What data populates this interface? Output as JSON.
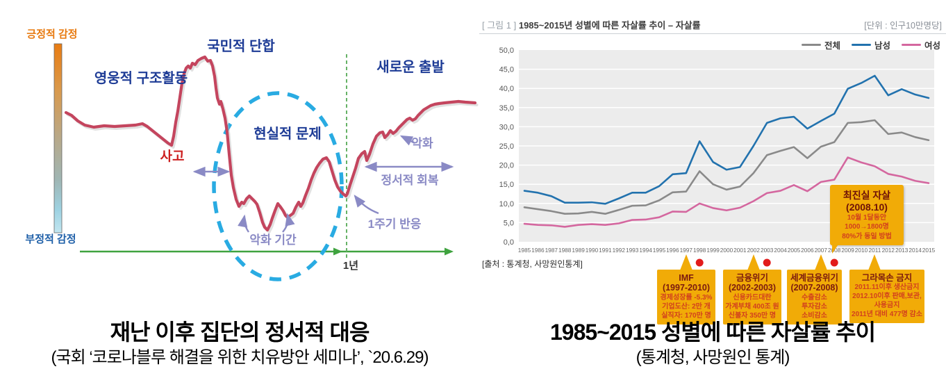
{
  "left_figure": {
    "axis": {
      "positive_emotion": "긍정적 감정",
      "negative_emotion": "부정적 감정",
      "one_year": "1년"
    },
    "annotations": {
      "heroic_rescue": "영웅적 구조활동",
      "national_unity": "국민적 단합",
      "new_start": "새로운 출발",
      "realistic_problems": "현실적 문제",
      "accident": "사고",
      "worsening": "악화",
      "emotional_recovery": "정서적 회복",
      "worsening_period": "악화 기간",
      "one_cycle_response": "1주기 반응"
    },
    "colors": {
      "curve": "#c4455e",
      "ellipse": "#29abe2",
      "axis_green": "#3fa33f",
      "annotation_purple": "#8a8ac5"
    },
    "caption_title": "재난 이후 집단의 정서적 대응",
    "caption_source": "(국회 ‘코로나블루 해결을 위한 치유방안 세미나’, `20.6.29)"
  },
  "right_figure": {
    "header": {
      "figure_tag": "[ 그림 1 ]",
      "title": "1985~2015년 성별에 따른 자살률 추이 – 자살률",
      "unit": "[단위 : 인구10만명당]"
    },
    "source": "[출처 : 통계청, 사망원인통계]",
    "callouts": [
      {
        "title": "IMF",
        "subtitle": "(1997-2010)",
        "lines": [
          "경제성장률 -5.3%",
          "기업도산: 2만 개",
          "실직자: 170만 명"
        ],
        "target_year": 1997
      },
      {
        "title": "금융위기",
        "subtitle": "(2002-2003)",
        "lines": [
          "신용카드대란",
          "가계부채 400조 원",
          "신불자 350만 명"
        ],
        "target_year": 2002
      },
      {
        "title": "세계금융위기",
        "subtitle": "(2007-2008)",
        "lines": [
          "수출감소",
          "투자감소",
          "소비감소"
        ],
        "target_year": 2007
      },
      {
        "title": "그라목손 금지",
        "subtitle": "",
        "lines": [
          "2011.11이후 생산금지",
          "2012.10이후 판매,보관,사용금지",
          "2011년 대비 477명 감소"
        ],
        "target_year": 2011
      }
    ],
    "event_callout": {
      "title": "최진실 자살",
      "subtitle": "(2008.10)",
      "lines": [
        "10월 1달동안",
        "1000→1800명",
        "80%가 동일 방법"
      ],
      "target_year": 2008
    },
    "caption_title": "1985~2015 성별에 따른 자살률 추이",
    "caption_source": "(통계청, 사망원인 통계)"
  },
  "chart_data": {
    "type": "line",
    "title": "1985~2015년 성별에 따른 자살률 추이 – 자살률",
    "unit": "인구10만명당",
    "categories": [
      1985,
      1986,
      1987,
      1988,
      1989,
      1990,
      1991,
      1992,
      1993,
      1994,
      1995,
      1996,
      1997,
      1998,
      1999,
      2000,
      2001,
      2002,
      2003,
      2004,
      2005,
      2006,
      2007,
      2008,
      2009,
      2010,
      2011,
      2012,
      2013,
      2014,
      2015
    ],
    "series": [
      {
        "name": "전체",
        "color": "#8a8a8a",
        "values": [
          9.0,
          8.5,
          8.0,
          7.3,
          7.4,
          7.8,
          7.3,
          8.3,
          9.4,
          9.5,
          10.8,
          12.9,
          13.1,
          18.4,
          15.0,
          13.6,
          14.4,
          17.9,
          22.6,
          23.7,
          24.7,
          21.8,
          24.8,
          26.0,
          31.0,
          31.2,
          31.7,
          28.1,
          28.5,
          27.3,
          26.5
        ]
      },
      {
        "name": "남성",
        "color": "#2272ae",
        "values": [
          13.3,
          12.8,
          11.9,
          10.2,
          10.2,
          10.3,
          9.9,
          11.3,
          12.8,
          12.8,
          14.5,
          17.6,
          17.9,
          26.2,
          20.8,
          18.8,
          19.5,
          25.0,
          31.0,
          32.2,
          32.6,
          29.5,
          31.5,
          33.4,
          39.9,
          41.4,
          43.3,
          38.2,
          39.8,
          38.4,
          37.5
        ]
      },
      {
        "name": "여성",
        "color": "#d4679f",
        "values": [
          4.7,
          4.4,
          4.3,
          3.9,
          4.4,
          4.6,
          4.4,
          4.8,
          5.7,
          5.8,
          6.4,
          7.9,
          7.8,
          10.0,
          8.8,
          8.2,
          8.9,
          10.6,
          12.7,
          13.3,
          14.8,
          13.2,
          15.6,
          16.2,
          22.0,
          20.7,
          19.7,
          17.7,
          17.0,
          15.9,
          15.3
        ]
      }
    ],
    "ylim": [
      0,
      50
    ],
    "y_ticks": [
      0,
      5,
      10,
      15,
      20,
      25,
      30,
      35,
      40,
      45,
      50
    ],
    "y_tick_labels": [
      "0,0",
      "5,0",
      "10,0",
      "15,0",
      "20,0",
      "25,0",
      "30,0",
      "35,0",
      "40,0",
      "45,0",
      "50,0"
    ],
    "xlabel": "",
    "ylabel": "",
    "grid": true,
    "legend_position": "top-right",
    "plot_background": "#ececec",
    "event_dot_years": [
      1998,
      2003,
      2008
    ],
    "event_dot_color": "#e21b1b"
  }
}
